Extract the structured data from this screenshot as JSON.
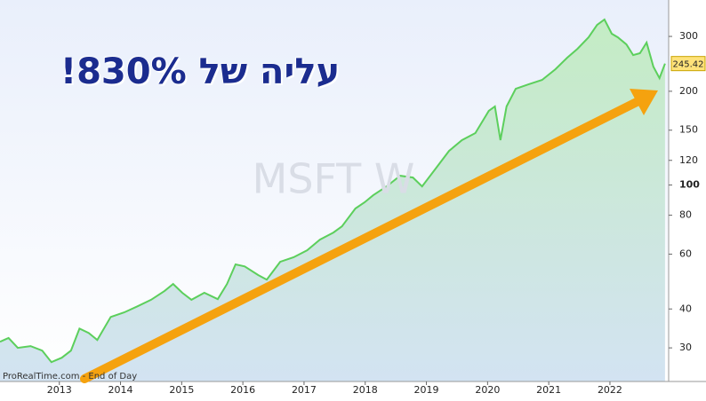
{
  "chart_data": {
    "type": "line",
    "headline": "עליה של 830%!",
    "watermark": "MSFT W",
    "source": "ProRealTime.com - End of Day",
    "log_scale": true,
    "color": "#5ccf5c",
    "x": [
      2012.03,
      2012.17,
      2012.32,
      2012.53,
      2012.72,
      2012.87,
      2013.04,
      2013.19,
      2013.33,
      2013.48,
      2013.62,
      2013.84,
      2014.06,
      2014.28,
      2014.5,
      2014.72,
      2014.86,
      2015.01,
      2015.16,
      2015.37,
      2015.59,
      2015.74,
      2015.88,
      2016.03,
      2016.25,
      2016.39,
      2016.61,
      2016.83,
      2017.05,
      2017.26,
      2017.48,
      2017.62,
      2017.84,
      2017.99,
      2018.13,
      2018.35,
      2018.57,
      2018.78,
      2018.93,
      2019.15,
      2019.37,
      2019.58,
      2019.8,
      2020.02,
      2020.12,
      2020.21,
      2020.31,
      2020.46,
      2020.67,
      2020.89,
      2021.11,
      2021.3,
      2021.47,
      2021.65,
      2021.79,
      2021.91,
      2022.03,
      2022.13,
      2022.27,
      2022.38,
      2022.49,
      2022.6,
      2022.71,
      2022.81,
      2022.9
    ],
    "values": [
      31.4,
      32.3,
      30.0,
      30.4,
      29.4,
      27.0,
      27.9,
      29.4,
      34.6,
      33.5,
      31.8,
      37.7,
      39.0,
      40.8,
      42.8,
      45.7,
      48.1,
      45.1,
      42.8,
      45.1,
      43.0,
      48.1,
      55.6,
      54.8,
      51.4,
      49.7,
      56.7,
      58.6,
      61.7,
      66.8,
      70.4,
      73.7,
      84.1,
      88.0,
      92.7,
      99.0,
      107.1,
      105.7,
      99.0,
      112.9,
      128.7,
      139.3,
      146.8,
      173.0,
      178.7,
      139.3,
      178.7,
      203.7,
      210.5,
      217.5,
      235.4,
      256.3,
      273.7,
      298.0,
      326.7,
      339.9,
      306.0,
      298.0,
      282.8,
      261.4,
      264.9,
      286.6,
      240.0,
      220.4,
      245.42
    ],
    "xlim": [
      2012.03,
      2022.96
    ],
    "xticks": [
      2013,
      2014,
      2015,
      2016,
      2017,
      2018,
      2019,
      2020,
      2021,
      2022
    ],
    "ylim": [
      23.4,
      392.7
    ],
    "yticks": [
      30,
      40,
      60,
      80,
      100,
      120,
      150,
      200,
      300
    ]
  }
}
